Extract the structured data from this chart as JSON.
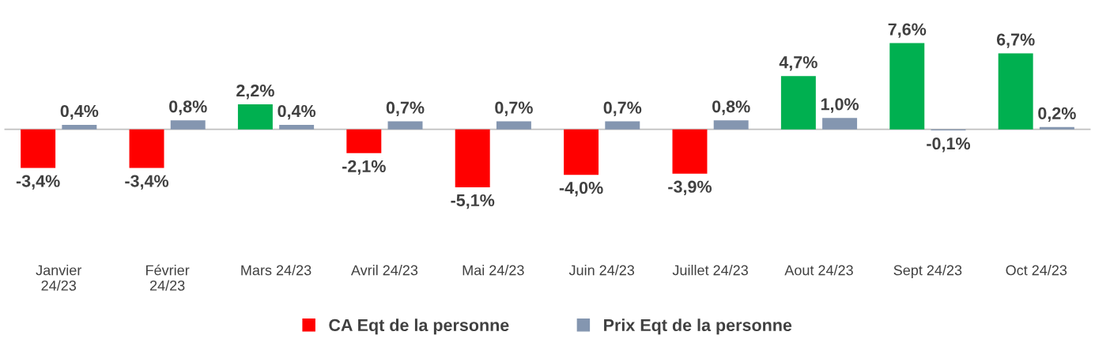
{
  "chart_data": {
    "type": "bar",
    "categories": [
      "Janvier\n24/23",
      "Février\n24/23",
      "Mars 24/23",
      "Avril 24/23",
      "Mai 24/23",
      "Juin 24/23",
      "Juillet 24/23",
      "Aout 24/23",
      "Sept 24/23",
      "Oct 24/23"
    ],
    "series": [
      {
        "name": "CA Eqt de la personne",
        "color": "#ff0000",
        "colors": [
          "#ff0000",
          "#ff0000",
          "#00b050",
          "#ff0000",
          "#ff0000",
          "#ff0000",
          "#ff0000",
          "#00b050",
          "#00b050",
          "#00b050"
        ],
        "values": [
          -3.4,
          -3.4,
          2.2,
          -2.1,
          -5.1,
          -4.0,
          -3.9,
          4.7,
          7.6,
          6.7
        ],
        "value_labels": [
          "-3,4%",
          "-3,4%",
          "2,2%",
          "-2,1%",
          "-5,1%",
          "-4,0%",
          "-3,9%",
          "4,7%",
          "7,6%",
          "6,7%"
        ]
      },
      {
        "name": "Prix Eqt de la personne",
        "color": "#8496b0",
        "values": [
          0.4,
          0.8,
          0.4,
          0.7,
          0.7,
          0.7,
          0.8,
          1.0,
          -0.1,
          0.2
        ],
        "value_labels": [
          "0,4%",
          "0,8%",
          "0,4%",
          "0,7%",
          "0,7%",
          "0,7%",
          "0,8%",
          "1,0%",
          "-0,1%",
          "0,2%"
        ]
      }
    ],
    "legend": "bottom"
  }
}
